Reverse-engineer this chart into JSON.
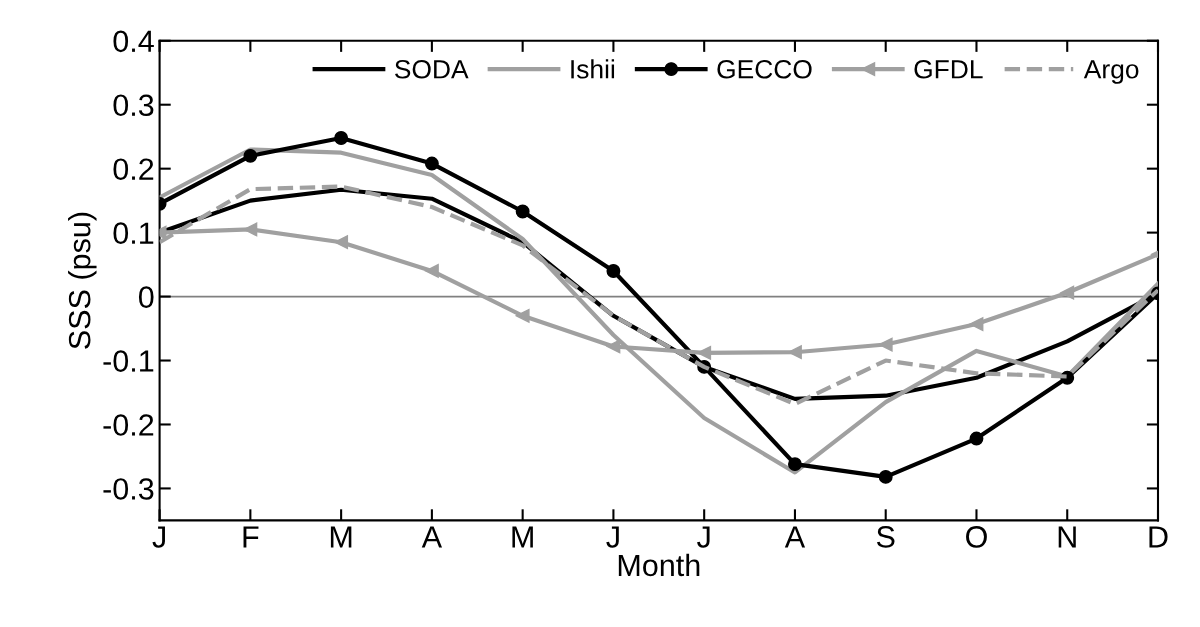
{
  "chart_data": {
    "type": "line",
    "xlabel": "Month",
    "ylabel": "SSS (psu)",
    "categories": [
      "J",
      "F",
      "M",
      "A",
      "M",
      "J",
      "J",
      "A",
      "S",
      "O",
      "N",
      "D"
    ],
    "ylim": [
      -0.35,
      0.4
    ],
    "yticks": [
      -0.3,
      -0.2,
      -0.1,
      0,
      0.1,
      0.2,
      0.3,
      0.4
    ],
    "grid": false,
    "legend": "top right",
    "ref_lines": [
      {
        "axis": "y",
        "value": 0,
        "color": "#808080"
      }
    ],
    "series": [
      {
        "name": "SODA",
        "color": "#000000",
        "marker": "none",
        "line_style": "solid",
        "values": [
          0.1,
          0.15,
          0.167,
          0.153,
          0.085,
          -0.03,
          -0.11,
          -0.16,
          -0.155,
          -0.127,
          -0.07,
          0.005
        ]
      },
      {
        "name": "Ishii",
        "color": "#a0a0a0",
        "marker": "none",
        "line_style": "solid",
        "values": [
          0.155,
          0.23,
          0.225,
          0.19,
          0.09,
          -0.06,
          -0.19,
          -0.275,
          -0.165,
          -0.085,
          -0.125,
          0.02
        ]
      },
      {
        "name": "GECCO",
        "color": "#000000",
        "marker": "circle",
        "line_style": "solid",
        "values": [
          0.145,
          0.22,
          0.248,
          0.208,
          0.133,
          0.04,
          -0.11,
          -0.262,
          -0.282,
          -0.222,
          -0.127,
          0.005
        ]
      },
      {
        "name": "GFDL",
        "color": "#a0a0a0",
        "marker": "triangle",
        "line_style": "solid",
        "values": [
          0.1,
          0.105,
          0.085,
          0.04,
          -0.03,
          -0.078,
          -0.088,
          -0.087,
          -0.075,
          -0.043,
          0.006,
          0.066
        ]
      },
      {
        "name": "Argo",
        "color": "#a0a0a0",
        "marker": "none",
        "line_style": "dashed",
        "values": [
          0.085,
          0.168,
          0.172,
          0.14,
          0.08,
          -0.03,
          -0.11,
          -0.168,
          -0.1,
          -0.12,
          -0.125,
          0.01
        ]
      }
    ]
  }
}
